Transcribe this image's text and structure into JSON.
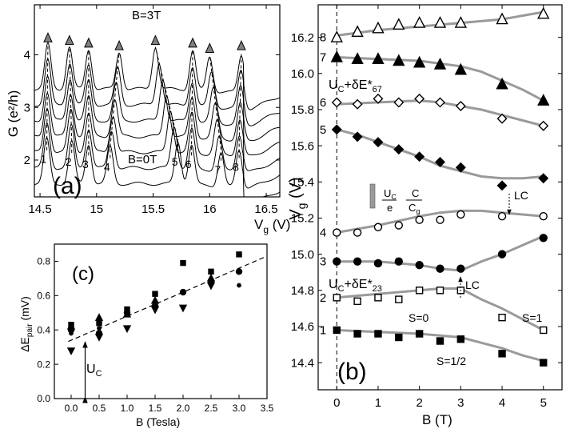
{
  "chart_data": [
    {
      "panel": "a",
      "type": "line",
      "panel_label": "(a)",
      "xlabel": "V",
      "xlabel_sub": "g",
      "xlabel_unit": " (V)",
      "ylabel": "G (e²/h)",
      "xlim": [
        14.45,
        16.62
      ],
      "ylim": [
        1.3,
        4.95
      ],
      "xticks": [
        "14.5",
        "15",
        "15.5",
        "16",
        "16.5"
      ],
      "xtick_values": [
        14.5,
        15.0,
        15.5,
        16.0,
        16.5
      ],
      "yticks": [
        "2",
        "3",
        "4"
      ],
      "ytick_values": [
        2,
        3,
        4
      ],
      "annotations": {
        "top": "B=3T",
        "bottom": "B=0T"
      },
      "n_curves": 7,
      "curve_offset_step": 0.3,
      "baseline_G": 1.55,
      "peak_width_V": 0.038,
      "peak_labels": [
        "1",
        "2",
        "3",
        "4",
        "5",
        "6",
        "7",
        "8"
      ],
      "peak_positions_B0": [
        14.56,
        14.78,
        14.93,
        15.12,
        15.72,
        15.84,
        16.1,
        16.26
      ],
      "peak_positions_B3": [
        14.57,
        14.76,
        14.93,
        15.2,
        15.52,
        15.85,
        16.0,
        16.28
      ],
      "peak_heights_G": [
        0.85,
        0.8,
        0.75,
        0.7,
        0.8,
        0.75,
        0.65,
        0.7
      ]
    },
    {
      "panel": "b",
      "type": "scatter",
      "panel_label": "(b)",
      "xlabel": "B (T)",
      "ylabel": "V",
      "ylabel_sub": "g",
      "ylabel_unit": " (V)",
      "xlim": [
        -0.45,
        5.45
      ],
      "ylim": [
        14.25,
        16.38
      ],
      "xticks": [
        "0",
        "1",
        "2",
        "3",
        "4",
        "5"
      ],
      "xtick_values": [
        0,
        1,
        2,
        3,
        4,
        5
      ],
      "yticks": [
        "14.4",
        "14.6",
        "14.8",
        "15.0",
        "15.2",
        "15.4",
        "15.6",
        "15.8",
        "16.0",
        "16.2"
      ],
      "ytick_values": [
        14.4,
        14.6,
        14.8,
        15.0,
        15.2,
        15.4,
        15.6,
        15.8,
        16.0,
        16.2
      ],
      "x": [
        0,
        0.5,
        1,
        1.5,
        2,
        2.5,
        3,
        4,
        5
      ],
      "series": [
        {
          "name": "1",
          "marker": "square",
          "filled": true,
          "values": [
            14.58,
            14.56,
            14.56,
            14.54,
            14.56,
            14.52,
            14.53,
            14.45,
            14.4
          ],
          "fit_x": [
            0,
            1,
            2,
            2.5,
            3,
            3.5,
            4,
            4.5,
            5
          ],
          "fit_y": [
            14.58,
            14.57,
            14.56,
            14.55,
            14.54,
            14.51,
            14.48,
            14.44,
            14.41
          ]
        },
        {
          "name": "2",
          "marker": "square",
          "filled": false,
          "values": [
            14.76,
            14.74,
            14.76,
            14.75,
            14.8,
            14.8,
            14.8,
            14.65,
            14.58
          ],
          "fit_x": [
            0,
            1,
            2,
            2.5,
            3,
            3.5,
            4,
            4.5,
            5
          ],
          "fit_y": [
            14.76,
            14.78,
            14.8,
            14.81,
            14.81,
            14.75,
            14.7,
            14.64,
            14.58
          ]
        },
        {
          "name": "3",
          "marker": "circle",
          "filled": true,
          "values": [
            14.96,
            14.96,
            14.95,
            14.96,
            14.94,
            14.92,
            14.92,
            15.0,
            15.09
          ],
          "fit_x": [
            0,
            1,
            2,
            2.5,
            3,
            3.5,
            4,
            4.5,
            5
          ],
          "fit_y": [
            14.96,
            14.96,
            14.94,
            14.92,
            14.91,
            14.96,
            15.0,
            15.05,
            15.1
          ]
        },
        {
          "name": "4",
          "marker": "circle",
          "filled": false,
          "values": [
            15.12,
            15.12,
            15.15,
            15.16,
            15.19,
            15.19,
            15.22,
            15.21,
            15.21
          ],
          "fit_x": [
            0,
            1,
            2,
            2.5,
            3,
            3.5,
            4,
            4.5,
            5
          ],
          "fit_y": [
            15.12,
            15.16,
            15.21,
            15.23,
            15.24,
            15.24,
            15.23,
            15.22,
            15.21
          ]
        },
        {
          "name": "5",
          "marker": "diamond",
          "filled": true,
          "values": [
            15.69,
            15.65,
            15.62,
            15.58,
            15.54,
            15.51,
            15.48,
            15.38,
            15.42
          ],
          "fit_x": [
            0,
            0.5,
            1,
            1.5,
            2,
            2.5,
            3,
            3.5,
            4,
            4.5,
            5
          ],
          "fit_y": [
            15.69,
            15.66,
            15.62,
            15.58,
            15.54,
            15.49,
            15.46,
            15.43,
            15.42,
            15.42,
            15.43
          ]
        },
        {
          "name": "6",
          "marker": "diamond",
          "filled": false,
          "values": [
            15.84,
            15.83,
            15.86,
            15.84,
            15.86,
            15.84,
            15.82,
            15.75,
            15.71
          ],
          "fit_x": [
            0,
            1,
            2,
            2.5,
            3,
            3.5,
            4,
            4.5,
            5
          ],
          "fit_y": [
            15.83,
            15.84,
            15.85,
            15.84,
            15.82,
            15.8,
            15.77,
            15.74,
            15.71
          ]
        },
        {
          "name": "7",
          "marker": "triangle",
          "filled": true,
          "values": [
            16.09,
            16.08,
            16.08,
            16.07,
            16.06,
            16.05,
            16.02,
            15.94,
            15.85
          ],
          "fit_x": [
            0,
            1,
            2,
            3,
            3.5,
            4,
            4.5,
            5
          ],
          "fit_y": [
            16.09,
            16.08,
            16.07,
            16.04,
            16.01,
            15.96,
            15.91,
            15.85
          ]
        },
        {
          "name": "8",
          "marker": "triangle",
          "filled": false,
          "values": [
            16.2,
            16.23,
            16.25,
            16.27,
            16.28,
            16.28,
            16.28,
            16.3,
            16.33
          ],
          "fit_x": [
            0,
            1,
            2,
            3,
            4,
            5
          ],
          "fit_y": [
            16.21,
            16.24,
            16.26,
            16.28,
            16.3,
            16.34
          ]
        }
      ],
      "annotations": {
        "uc_de67": "U",
        "uc_de67_sub": "C",
        "uc_de67_tail": "+δE*",
        "uc_de67_sub2": "67",
        "uc_de23": "U",
        "uc_de23_sub": "C",
        "uc_de23_tail": "+δE*",
        "uc_de23_sub2": "23",
        "lc": "LC",
        "s0": "S=0",
        "s1": "S=1",
        "s_half": "S=1/2",
        "scale_num_u": "U",
        "scale_num_sub": "C",
        "scale_num_c": "C",
        "scale_den_e": "e",
        "scale_den_c": "C",
        "scale_den_sub": "g"
      }
    },
    {
      "panel": "c",
      "type": "scatter",
      "panel_label": "(c)",
      "xlabel": "B (Tesla)",
      "ylabel": "ΔE",
      "ylabel_sub": "pair",
      "ylabel_unit": " (mV)",
      "xlim": [
        -0.3,
        3.5
      ],
      "ylim": [
        0.0,
        0.9
      ],
      "xticks": [
        "0.0",
        "0.5",
        "1.0",
        "1.5",
        "2.0",
        "2.5",
        "3.0",
        "3.5"
      ],
      "xtick_values": [
        0,
        0.5,
        1.0,
        1.5,
        2.0,
        2.5,
        3.0,
        3.5
      ],
      "yticks": [
        "0.0",
        "0.2",
        "0.4",
        "0.6",
        "0.8"
      ],
      "ytick_values": [
        0,
        0.2,
        0.4,
        0.6,
        0.8
      ],
      "series": [
        {
          "name": "squares",
          "marker": "square",
          "x": [
            0,
            0.5,
            1,
            1.5,
            2,
            2.5,
            3
          ],
          "values": [
            0.43,
            0.44,
            0.52,
            0.61,
            0.79,
            0.74,
            0.84
          ]
        },
        {
          "name": "up-triangles",
          "marker": "triangle-up",
          "x": [
            0,
            0.5,
            1,
            1.5,
            2.5
          ],
          "values": [
            0.42,
            0.47,
            0.49,
            0.57,
            0.7
          ]
        },
        {
          "name": "down-triangles",
          "marker": "triangle-down",
          "x": [
            0,
            0.5,
            1,
            1.5,
            2,
            2.5
          ],
          "values": [
            0.28,
            0.36,
            0.41,
            0.52,
            0.53,
            0.66
          ]
        },
        {
          "name": "circles",
          "marker": "circle",
          "x": [
            0,
            0.5,
            1,
            1.5,
            2,
            2.5,
            3
          ],
          "values": [
            0.4,
            0.38,
            0.5,
            0.54,
            0.62,
            0.68,
            0.74
          ]
        },
        {
          "name": "stars",
          "marker": "star",
          "x": [
            0,
            0.5,
            1,
            1.5,
            2.5,
            3
          ],
          "values": [
            0.38,
            0.41,
            0.49,
            0.55,
            0.67,
            0.66
          ]
        }
      ],
      "fit": {
        "slope": 0.14,
        "intercept": 0.34,
        "style": "dashed"
      },
      "annotations": {
        "uc": "U",
        "uc_sub": "C",
        "uc_from": 0.0,
        "uc_to": 0.34,
        "uc_x": 0.25
      }
    }
  ]
}
